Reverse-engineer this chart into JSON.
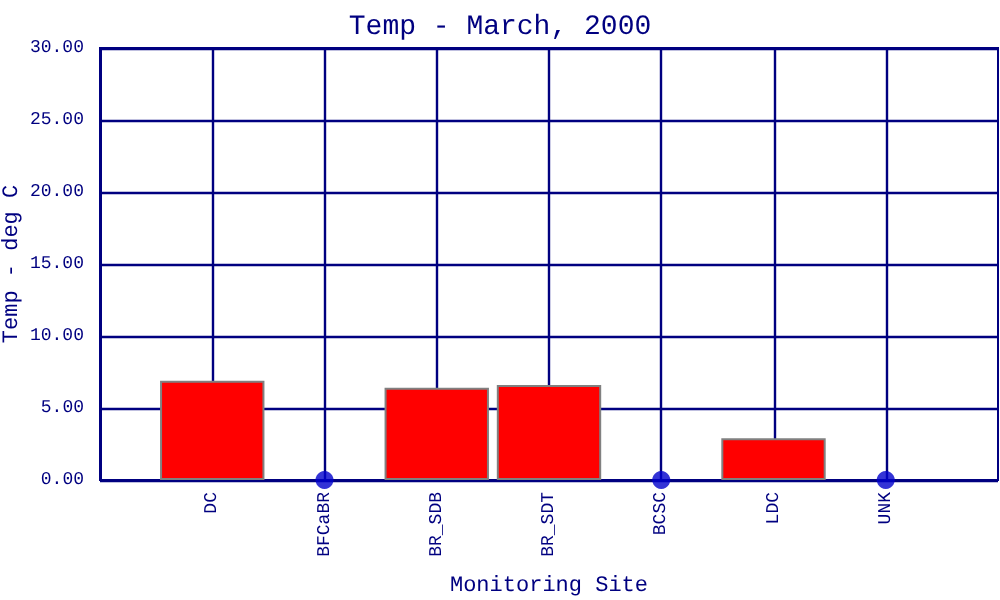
{
  "chart_data": {
    "type": "bar",
    "title": "Temp - March, 2000",
    "xlabel": "Monitoring Site",
    "ylabel": "Temp - deg C",
    "categories": [
      "DC",
      "BFCaBR",
      "BR_SDB",
      "BR_SDT",
      "BCSC",
      "LDC",
      "UNK"
    ],
    "series": [
      {
        "color": "#ff0000",
        "values": [
          6.9,
          null,
          6.4,
          6.6,
          null,
          2.9,
          null
        ]
      },
      {
        "type": "scatter",
        "color": "#0000cc",
        "x": [
          "BFCaBR",
          "BCSC",
          "UNK"
        ],
        "values": [
          0,
          0,
          0
        ],
        "marker": "circle"
      }
    ],
    "ylim": [
      0,
      30
    ],
    "yticks": [
      {
        "value": 0,
        "label": "0.00"
      },
      {
        "value": 5,
        "label": "5.00"
      },
      {
        "value": 10,
        "label": "10.00"
      },
      {
        "value": 15,
        "label": "15.00"
      },
      {
        "value": 20,
        "label": "20.00"
      },
      {
        "value": 25,
        "label": "25.00"
      },
      {
        "value": 30,
        "label": "30.00"
      }
    ],
    "grid": true
  }
}
